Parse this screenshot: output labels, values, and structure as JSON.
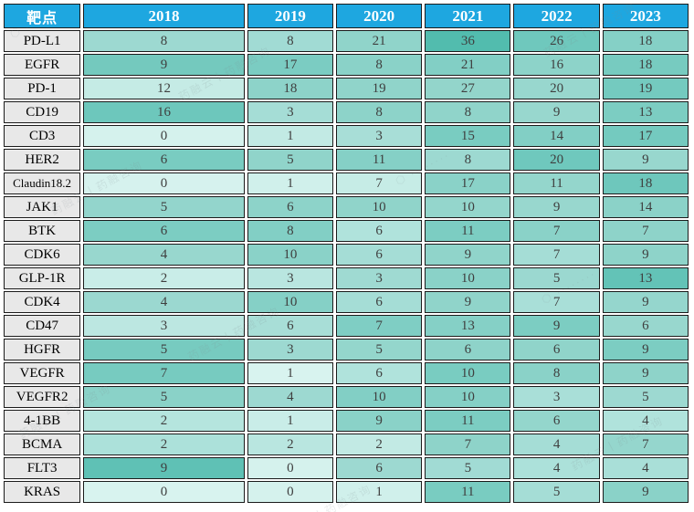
{
  "colors": {
    "header_bg": "#1EA7E0",
    "header_text": "#FFFFFF",
    "label_bg": "#E8E8E8",
    "border": "#1B1B1B",
    "value_text": "#3F3F3F"
  },
  "watermark": {
    "full": "药融云丨药融咨询",
    "logo_dots": "⬡ ········",
    "short": "丨药融咨询"
  },
  "chart_data": {
    "type": "heatmap",
    "title": "",
    "corner_label": "靶点",
    "columns": [
      "2018",
      "2019",
      "2020",
      "2021",
      "2022",
      "2023"
    ],
    "value_range": [
      0,
      36
    ],
    "legend": "none",
    "palette": {
      "min_color": "#D8F3EF",
      "max_color": "#52BCAE"
    },
    "series": [
      {
        "name": "PD-L1",
        "values": [
          8,
          8,
          21,
          36,
          26,
          18
        ],
        "cell_colors": [
          "#9DD9D1",
          "#A1DBD4",
          "#90D4CA",
          "#52BCAE",
          "#6FC8BD",
          "#85D0C6"
        ]
      },
      {
        "name": "EGFR",
        "values": [
          9,
          17,
          8,
          21,
          16,
          18
        ],
        "cell_colors": [
          "#74C9BE",
          "#7BCCC2",
          "#8AD2C8",
          "#82CFC5",
          "#8DD3C9",
          "#77CBC0"
        ]
      },
      {
        "name": "PD-1",
        "values": [
          12,
          18,
          19,
          27,
          20,
          19
        ],
        "cell_colors": [
          "#C5EBE5",
          "#8DD3C9",
          "#90D4CA",
          "#93D5CB",
          "#98D7CE",
          "#74CABF"
        ]
      },
      {
        "name": "CD19",
        "values": [
          16,
          3,
          8,
          8,
          9,
          13
        ],
        "cell_colors": [
          "#6DC7BC",
          "#A5DDD6",
          "#8DD3C9",
          "#90D4CA",
          "#98D7CE",
          "#7CCDC2"
        ]
      },
      {
        "name": "CD3",
        "values": [
          0,
          1,
          3,
          15,
          14,
          17
        ],
        "cell_colors": [
          "#D5F2ED",
          "#C2EAE4",
          "#A8DED7",
          "#79CCC1",
          "#82CFC5",
          "#74CABF"
        ]
      },
      {
        "name": "HER2",
        "values": [
          6,
          5,
          11,
          8,
          20,
          9
        ],
        "cell_colors": [
          "#79CCC1",
          "#90D4CA",
          "#85D0C6",
          "#9DD9D1",
          "#6FC8BD",
          "#98D7CE"
        ]
      },
      {
        "name": "Claudin18.2",
        "values": [
          0,
          1,
          7,
          17,
          11,
          18
        ],
        "cell_colors": [
          "#D6F2EE",
          "#D0F0EB",
          "#C6ECE6",
          "#8AD2C8",
          "#94D6CC",
          "#6EC7BC"
        ]
      },
      {
        "name": "JAK1",
        "values": [
          5,
          6,
          10,
          10,
          9,
          14
        ],
        "cell_colors": [
          "#93D5CC",
          "#8DD3C9",
          "#90D4CA",
          "#94D6CC",
          "#98D7CE",
          "#8BD2C8"
        ]
      },
      {
        "name": "BTK",
        "values": [
          6,
          8,
          6,
          11,
          7,
          7
        ],
        "cell_colors": [
          "#7CCDC2",
          "#82CFC5",
          "#B0E3DC",
          "#7CCDC2",
          "#8AD2C8",
          "#8ED3C9"
        ]
      },
      {
        "name": "CDK6",
        "values": [
          4,
          10,
          6,
          9,
          7,
          9
        ],
        "cell_colors": [
          "#98D7CE",
          "#8AD2C8",
          "#A5DDD6",
          "#90D4CA",
          "#A5DDD6",
          "#8ED3C9"
        ]
      },
      {
        "name": "GLP-1R",
        "values": [
          2,
          3,
          3,
          10,
          5,
          13
        ],
        "cell_colors": [
          "#C9EDE8",
          "#B9E6E0",
          "#9FDAD2",
          "#8AD2C8",
          "#9BD8D0",
          "#63C3B7"
        ]
      },
      {
        "name": "CDK4",
        "values": [
          4,
          10,
          6,
          9,
          7,
          9
        ],
        "cell_colors": [
          "#9BD8D0",
          "#85D0C6",
          "#A5DDD6",
          "#90D4CA",
          "#A9DFD8",
          "#95D6CD"
        ]
      },
      {
        "name": "CD47",
        "values": [
          3,
          6,
          7,
          13,
          9,
          6
        ],
        "cell_colors": [
          "#BCE7E1",
          "#A8DED7",
          "#7FCEC4",
          "#85D0C6",
          "#7CCDC2",
          "#98D7CE"
        ]
      },
      {
        "name": "HGFR",
        "values": [
          5,
          3,
          5,
          6,
          6,
          9
        ],
        "cell_colors": [
          "#77CBC0",
          "#9DD9D1",
          "#94D6CC",
          "#8ED3C9",
          "#90D4CA",
          "#7CCDC2"
        ]
      },
      {
        "name": "VEGFR",
        "values": [
          7,
          1,
          6,
          10,
          8,
          9
        ],
        "cell_colors": [
          "#77CBC0",
          "#D8F3EF",
          "#B0E3DC",
          "#79CCC1",
          "#8AD2C8",
          "#8ED3C9"
        ]
      },
      {
        "name": "VEGFR2",
        "values": [
          5,
          4,
          10,
          10,
          3,
          5
        ],
        "cell_colors": [
          "#8AD2C8",
          "#9DD9D1",
          "#82CFC5",
          "#85D0C6",
          "#A9DFD8",
          "#9DD9D1"
        ]
      },
      {
        "name": "4-1BB",
        "values": [
          2,
          1,
          9,
          11,
          6,
          4
        ],
        "cell_colors": [
          "#B5E5DE",
          "#C9EDE8",
          "#8AD2C8",
          "#7CCDC2",
          "#94D6CC",
          "#B0E3DC"
        ]
      },
      {
        "name": "BCMA",
        "values": [
          2,
          2,
          2,
          7,
          4,
          7
        ],
        "cell_colors": [
          "#ACE1DA",
          "#B9E6E0",
          "#C2EAE4",
          "#8ED3C9",
          "#A5DDD6",
          "#95D6CD"
        ]
      },
      {
        "name": "FLT3",
        "values": [
          9,
          0,
          6,
          5,
          4,
          4
        ],
        "cell_colors": [
          "#5FC1B5",
          "#D5F2ED",
          "#9DD9D1",
          "#A1DBD4",
          "#ACE1DA",
          "#A9DFD8"
        ]
      },
      {
        "name": "KRAS",
        "values": [
          0,
          0,
          1,
          11,
          5,
          9
        ],
        "cell_colors": [
          "#D8F3EF",
          "#D5F2ED",
          "#D0F0EB",
          "#79CCC1",
          "#A5DDD6",
          "#8AD2C8"
        ]
      }
    ]
  }
}
